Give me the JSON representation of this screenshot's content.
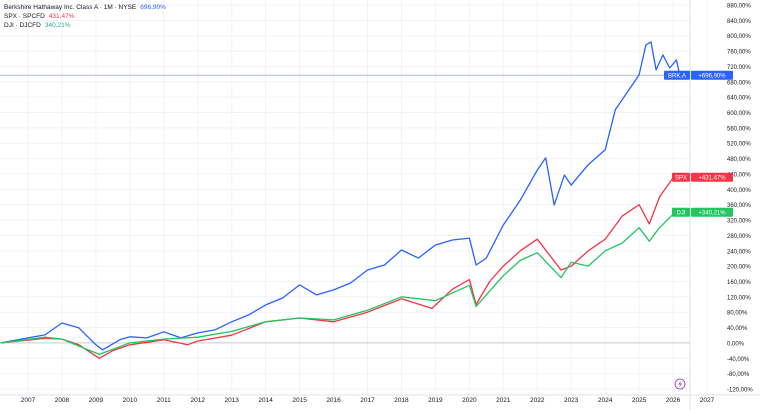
{
  "legend": [
    {
      "label": "Berkshire Hathaway Inc. Class A · 1M · NYSE",
      "value": "696,90%",
      "color": "#2962ff"
    },
    {
      "label": "SPX · SPCFD",
      "value": "431,47%",
      "color": "#f23645"
    },
    {
      "label": "DJI · DJCFD",
      "value": "340,21%",
      "color": "#22ab94"
    }
  ],
  "chart_data": {
    "type": "line",
    "ylim": [
      -120,
      880
    ],
    "xlim": [
      2006.2,
      2027.3
    ],
    "y_ticks": [
      "880,00%",
      "840,00%",
      "800,00%",
      "760,00%",
      "720,00%",
      "680,00%",
      "640,00%",
      "600,00%",
      "560,00%",
      "520,00%",
      "480,00%",
      "440,00%",
      "400,00%",
      "360,00%",
      "320,00%",
      "280,00%",
      "240,00%",
      "200,00%",
      "160,00%",
      "120,00%",
      "80,00%",
      "40,00%",
      "0,00%",
      "-40,00%",
      "-80,00%",
      "-120,00%"
    ],
    "y_tick_values": [
      880,
      840,
      800,
      760,
      720,
      680,
      640,
      600,
      560,
      520,
      480,
      440,
      400,
      360,
      320,
      280,
      240,
      200,
      160,
      120,
      80,
      40,
      0,
      -40,
      -80,
      -120
    ],
    "x_ticks": [
      "2007",
      "2008",
      "2009",
      "2010",
      "2011",
      "2012",
      "2013",
      "2014",
      "2015",
      "2016",
      "2017",
      "2018",
      "2019",
      "2020",
      "2021",
      "2022",
      "2023",
      "2024",
      "2025",
      "2026",
      "2027"
    ],
    "x_tick_values": [
      2007,
      2008,
      2009,
      2010,
      2011,
      2012,
      2013,
      2014,
      2015,
      2016,
      2017,
      2018,
      2019,
      2020,
      2021,
      2022,
      2023,
      2024,
      2025,
      2026,
      2027
    ],
    "grid": true,
    "series": [
      {
        "name": "BRK.A",
        "badge_value": "+696,90%",
        "color": "#2962ff",
        "x": [
          2006.2,
          2007.0,
          2007.5,
          2008.0,
          2008.5,
          2009.0,
          2009.2,
          2009.7,
          2010.0,
          2010.5,
          2011.0,
          2011.5,
          2012.0,
          2012.5,
          2013.0,
          2013.5,
          2014.0,
          2014.5,
          2015.0,
          2015.5,
          2016.0,
          2016.5,
          2017.0,
          2017.5,
          2018.0,
          2018.5,
          2019.0,
          2019.5,
          2020.0,
          2020.2,
          2020.5,
          2021.0,
          2021.5,
          2022.0,
          2022.25,
          2022.5,
          2022.8,
          2023.0,
          2023.5,
          2024.0,
          2024.3,
          2024.7,
          2025.0,
          2025.2,
          2025.35,
          2025.5,
          2025.7,
          2025.9,
          2026.1,
          2026.2
        ],
        "y": [
          0,
          13,
          21,
          52,
          39,
          -5,
          -18,
          8,
          16,
          13,
          29,
          13,
          26,
          34,
          55,
          73,
          99,
          117,
          151,
          125,
          138,
          156,
          190,
          203,
          242,
          221,
          255,
          268,
          273,
          203,
          221,
          307,
          372,
          450,
          482,
          359,
          437,
          411,
          464,
          503,
          607,
          659,
          698,
          776,
          784,
          711,
          750,
          716,
          737,
          697
        ]
      },
      {
        "name": "SPX",
        "badge_value": "+431,47%",
        "color": "#f23645",
        "x": [
          2006.2,
          2007.5,
          2008.0,
          2008.5,
          2009.1,
          2009.5,
          2010.0,
          2011.0,
          2011.7,
          2012.0,
          2013.0,
          2014.0,
          2015.0,
          2016.0,
          2017.0,
          2018.0,
          2018.9,
          2019.5,
          2020.0,
          2020.2,
          2020.6,
          2021.0,
          2021.5,
          2022.0,
          2022.7,
          2023.0,
          2023.5,
          2024.0,
          2024.5,
          2025.0,
          2025.3,
          2025.6,
          2026.0,
          2026.2
        ],
        "y": [
          0,
          12,
          10,
          -5,
          -40,
          -20,
          -5,
          8,
          -5,
          5,
          20,
          55,
          65,
          55,
          80,
          115,
          90,
          140,
          165,
          100,
          160,
          200,
          240,
          270,
          190,
          200,
          240,
          270,
          330,
          360,
          310,
          380,
          430,
          431
        ]
      },
      {
        "name": "DJI",
        "badge_value": "+340,21%",
        "color": "#22c55e",
        "x": [
          2006.2,
          2007.5,
          2008.0,
          2009.1,
          2010.0,
          2011.0,
          2012.0,
          2013.0,
          2014.0,
          2015.0,
          2016.0,
          2017.0,
          2018.0,
          2019.0,
          2020.0,
          2020.2,
          2021.0,
          2021.5,
          2022.0,
          2022.7,
          2023.0,
          2023.5,
          2024.0,
          2024.5,
          2025.0,
          2025.3,
          2025.6,
          2026.0,
          2026.2
        ],
        "y": [
          0,
          15,
          10,
          -30,
          0,
          10,
          15,
          30,
          55,
          65,
          60,
          85,
          120,
          110,
          150,
          95,
          175,
          215,
          235,
          170,
          210,
          200,
          240,
          260,
          300,
          265,
          300,
          335,
          340
        ]
      }
    ]
  }
}
